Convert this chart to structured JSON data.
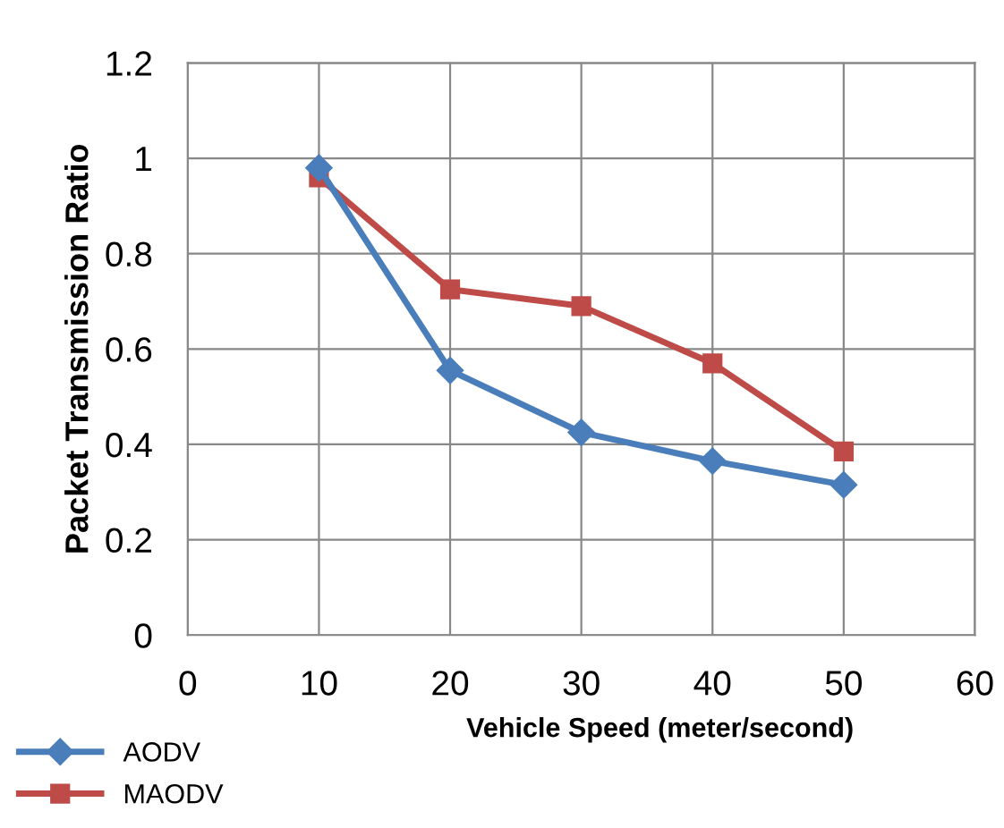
{
  "chart_data": {
    "type": "line",
    "xlabel": "Vehicle Speed (meter/second)",
    "ylabel": "Packet Transmission Ratio",
    "x": [
      10,
      20,
      30,
      40,
      50
    ],
    "series": [
      {
        "name": "AODV",
        "color": "#4a7ebb",
        "marker": "diamond",
        "values": [
          0.98,
          0.555,
          0.425,
          0.365,
          0.315
        ]
      },
      {
        "name": "MAODV",
        "color": "#be4b48",
        "marker": "square",
        "values": [
          0.96,
          0.725,
          0.69,
          0.57,
          0.385
        ]
      }
    ],
    "xlim": [
      0,
      60
    ],
    "xticks": [
      0,
      10,
      20,
      30,
      40,
      50,
      60
    ],
    "ylim": [
      0,
      1.2
    ],
    "yticks": [
      0,
      0.2,
      0.4,
      0.6,
      0.8,
      1,
      1.2
    ],
    "grid": true,
    "legend": "bottom left",
    "line_style": "solid"
  }
}
